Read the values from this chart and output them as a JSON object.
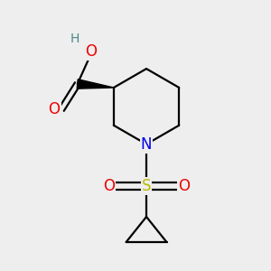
{
  "bg_color": "#eeeeee",
  "atom_colors": {
    "C": "#000000",
    "N": "#0000ee",
    "O": "#ee0000",
    "S": "#bbbb00",
    "H": "#4a8888"
  },
  "bond_color": "#000000",
  "line_width": 1.6
}
